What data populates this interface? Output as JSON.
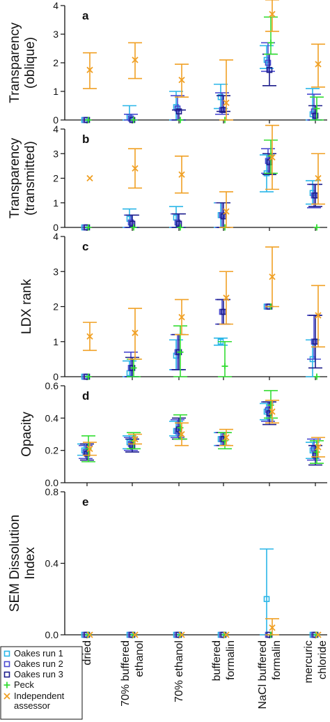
{
  "legend": [
    {
      "name": "Oakes run 1",
      "color": "#29b6e8",
      "marker": "square"
    },
    {
      "name": "Oakes run 2",
      "color": "#4a4ad0",
      "marker": "square"
    },
    {
      "name": "Oakes run 3",
      "color": "#1c1c8a",
      "marker": "square"
    },
    {
      "name": "Peck",
      "color": "#33dd33",
      "marker": "plus"
    },
    {
      "name": "Independent assessor",
      "color": "#f0a024",
      "marker": "x"
    }
  ],
  "chart_data": [
    {
      "panel": "a",
      "type": "scatter",
      "ylabel": [
        "Transparency",
        "(oblique)"
      ],
      "ylim": [
        0,
        4
      ],
      "yticks": [
        "0",
        "1",
        "2",
        "3",
        "4"
      ],
      "categories": [
        "dried",
        "70% buffered ethanol",
        "70% ethanol",
        "buffered formalin",
        "NaCl buffered formalin",
        "mercuric chloride"
      ],
      "series": [
        {
          "name": "Oakes run 1",
          "values": [
            0,
            0.1,
            0.45,
            0.8,
            2.1,
            0.2
          ],
          "lo": [
            0,
            0,
            0,
            0.4,
            1.8,
            0
          ],
          "hi": [
            0,
            0.5,
            1.0,
            1.25,
            2.6,
            1.1
          ]
        },
        {
          "name": "Oakes run 2",
          "values": [
            0,
            0.05,
            0.4,
            0.35,
            2.0,
            0.3
          ],
          "lo": [
            0,
            0,
            0,
            0.2,
            1.7,
            0
          ],
          "hi": [
            0,
            0.2,
            0.85,
            0.95,
            2.7,
            0.9
          ]
        },
        {
          "name": "Oakes run 3",
          "values": [
            0,
            0.0,
            0.3,
            0.35,
            1.75,
            0.15
          ],
          "lo": [
            0,
            0,
            0,
            0.3,
            1.2,
            0
          ],
          "hi": [
            0,
            0,
            0.35,
            0.85,
            2.3,
            0.5
          ]
        },
        {
          "name": "Peck",
          "values": [
            0,
            0.0,
            0.0,
            0.0,
            2.7,
            0.4
          ],
          "lo": [
            0,
            0,
            0,
            0,
            2.3,
            0
          ],
          "hi": [
            0,
            0,
            0,
            0,
            3.6,
            0.8
          ]
        },
        {
          "name": "Independent assessor",
          "values": [
            1.75,
            2.1,
            1.4,
            0.6,
            3.7,
            1.95
          ],
          "lo": [
            1.1,
            1.45,
            0.8,
            0.0,
            3.1,
            1.15
          ],
          "hi": [
            2.35,
            2.7,
            1.95,
            2.1,
            4.2,
            2.65
          ]
        }
      ]
    },
    {
      "panel": "b",
      "type": "scatter",
      "ylabel": [
        "Transparency",
        "(transmitted)"
      ],
      "ylim": [
        0,
        4
      ],
      "yticks": [
        "0",
        "1",
        "2",
        "3",
        "4"
      ],
      "categories": [
        "dried",
        "70% buffered ethanol",
        "70% ethanol",
        "buffered formalin",
        "NaCl buffered formalin",
        "mercuric chloride"
      ],
      "series": [
        {
          "name": "Oakes run 1",
          "values": [
            0,
            0.35,
            0.4,
            0.5,
            2.2,
            1.4
          ],
          "lo": [
            0,
            0,
            0,
            0,
            1.45,
            0.95
          ],
          "hi": [
            0,
            0.75,
            0.85,
            1.0,
            2.95,
            1.9
          ]
        },
        {
          "name": "Oakes run 2",
          "values": [
            0,
            0.2,
            0.2,
            0.5,
            2.7,
            1.3
          ],
          "lo": [
            0,
            0,
            0,
            0,
            2.2,
            0.8
          ],
          "hi": [
            0,
            0.5,
            0.55,
            1.0,
            3.2,
            1.75
          ]
        },
        {
          "name": "Oakes run 3",
          "values": [
            0,
            0.15,
            0.15,
            0.45,
            2.65,
            1.3
          ],
          "lo": [
            0,
            0,
            0,
            0,
            2.15,
            0.85
          ],
          "hi": [
            0,
            0.5,
            0.55,
            1.0,
            3.0,
            1.75
          ]
        },
        {
          "name": "Peck",
          "values": [
            0,
            0.0,
            0.0,
            0.0,
            2.9,
            0.0
          ],
          "lo": [
            0,
            0,
            0,
            0,
            2.2,
            0
          ],
          "hi": [
            0,
            0,
            0,
            0,
            3.55,
            0
          ]
        },
        {
          "name": "Independent assessor",
          "values": [
            2.0,
            2.4,
            2.15,
            0.65,
            2.85,
            2.0
          ],
          "lo": [
            2.0,
            1.6,
            1.4,
            0.0,
            1.55,
            0.95
          ],
          "hi": [
            2.0,
            3.2,
            2.9,
            1.45,
            4.15,
            3.0
          ]
        }
      ]
    },
    {
      "panel": "c",
      "type": "scatter",
      "ylabel": [
        "LDX rank"
      ],
      "ylim": [
        0,
        4
      ],
      "yticks": [
        "0",
        "1",
        "2",
        "3",
        "4"
      ],
      "categories": [
        "dried",
        "70% buffered ethanol",
        "70% ethanol",
        "buffered formalin",
        "NaCl buffered formalin",
        "mercuric chloride"
      ],
      "series": [
        {
          "name": "Oakes run 1",
          "values": [
            0,
            0.1,
            0.6,
            1.0,
            2.0,
            0.5
          ],
          "lo": [
            0,
            0,
            0.2,
            0.9,
            2.0,
            0
          ],
          "hi": [
            0,
            0.45,
            1.05,
            1.1,
            2.0,
            1.05
          ]
        },
        {
          "name": "Oakes run 2",
          "values": [
            0,
            0.25,
            0.7,
            1.85,
            2.0,
            1.0
          ],
          "lo": [
            0,
            0,
            0.2,
            1.5,
            2.0,
            0.5
          ],
          "hi": [
            0,
            0.7,
            1.2,
            2.2,
            2.0,
            1.75
          ]
        },
        {
          "name": "Oakes run 3",
          "values": [
            0,
            0.25,
            0.7,
            1.85,
            2.0,
            1.0
          ],
          "lo": [
            0,
            0,
            0.2,
            1.5,
            2.0,
            0.25
          ],
          "hi": [
            0,
            0.55,
            1.2,
            2.2,
            2.0,
            1.75
          ]
        },
        {
          "name": "Peck",
          "values": [
            0,
            0.25,
            0.7,
            0.3,
            2.0,
            0.0
          ],
          "lo": [
            0,
            0,
            0.0,
            0.0,
            2.0,
            0
          ],
          "hi": [
            0,
            0.5,
            1.45,
            1.0,
            2.0,
            0
          ]
        },
        {
          "name": "Independent assessor",
          "values": [
            1.15,
            1.25,
            1.7,
            2.25,
            2.85,
            1.75
          ],
          "lo": [
            0.75,
            0.5,
            1.2,
            1.5,
            2.0,
            0.85
          ],
          "hi": [
            1.55,
            1.95,
            2.2,
            3.0,
            3.7,
            2.6
          ]
        }
      ]
    },
    {
      "panel": "d",
      "type": "scatter",
      "ylabel": [
        "Opacity"
      ],
      "ylim": [
        0,
        0.6
      ],
      "yticks": [
        "0.0",
        "0.2",
        "0.4",
        "0.6"
      ],
      "categories": [
        "dried",
        "70% buffered ethanol",
        "70% ethanol",
        "buffered formalin",
        "NaCl buffered formalin",
        "mercuric chloride"
      ],
      "series": [
        {
          "name": "Oakes run 1",
          "values": [
            0.2,
            0.25,
            0.32,
            0.27,
            0.44,
            0.2
          ],
          "lo": [
            0.17,
            0.21,
            0.29,
            0.23,
            0.39,
            0.15
          ],
          "hi": [
            0.24,
            0.29,
            0.38,
            0.31,
            0.49,
            0.25
          ]
        },
        {
          "name": "Oakes run 2",
          "values": [
            0.19,
            0.24,
            0.32,
            0.27,
            0.45,
            0.21
          ],
          "lo": [
            0.15,
            0.2,
            0.28,
            0.23,
            0.38,
            0.14
          ],
          "hi": [
            0.23,
            0.28,
            0.39,
            0.31,
            0.5,
            0.27
          ]
        },
        {
          "name": "Oakes run 3",
          "values": [
            0.18,
            0.23,
            0.33,
            0.27,
            0.43,
            0.17
          ],
          "lo": [
            0.14,
            0.19,
            0.27,
            0.23,
            0.36,
            0.11
          ],
          "hi": [
            0.24,
            0.27,
            0.4,
            0.31,
            0.5,
            0.23
          ]
        },
        {
          "name": "Peck",
          "values": [
            0.21,
            0.26,
            0.34,
            0.26,
            0.48,
            0.19
          ],
          "lo": [
            0.13,
            0.21,
            0.27,
            0.21,
            0.4,
            0.12
          ],
          "hi": [
            0.29,
            0.31,
            0.42,
            0.31,
            0.57,
            0.26
          ]
        },
        {
          "name": "Independent assessor",
          "values": [
            0.21,
            0.27,
            0.3,
            0.28,
            0.44,
            0.22
          ],
          "lo": [
            0.17,
            0.24,
            0.23,
            0.23,
            0.37,
            0.16
          ],
          "hi": [
            0.25,
            0.3,
            0.37,
            0.33,
            0.51,
            0.28
          ]
        }
      ]
    },
    {
      "panel": "e",
      "type": "scatter",
      "ylabel": [
        "SEM Dissolution",
        "Index"
      ],
      "ylim": [
        0,
        0.8
      ],
      "yticks": [
        "0.0",
        "0.4",
        "0.8"
      ],
      "yticks_at": [
        0,
        0.4,
        0.8
      ],
      "categories": [
        "dried",
        "70% buffered ethanol",
        "70% ethanol",
        "buffered formalin",
        "NaCl buffered formalin",
        "mercuric chloride"
      ],
      "series": [
        {
          "name": "Oakes run 1",
          "values": [
            0,
            0,
            0,
            0,
            0.2,
            0
          ],
          "lo": [
            0,
            0,
            0,
            0,
            0.0,
            0
          ],
          "hi": [
            0,
            0,
            0,
            0,
            0.48,
            0
          ]
        },
        {
          "name": "Oakes run 2",
          "values": [
            0,
            0,
            0,
            0,
            0,
            0
          ],
          "lo": [
            0,
            0,
            0,
            0,
            0,
            0
          ],
          "hi": [
            0,
            0,
            0,
            0,
            0,
            0
          ]
        },
        {
          "name": "Oakes run 3",
          "values": [
            0,
            0,
            0,
            0,
            0,
            0
          ],
          "lo": [
            0,
            0,
            0,
            0,
            0,
            0
          ],
          "hi": [
            0,
            0,
            0,
            0,
            0,
            0
          ]
        },
        {
          "name": "Peck",
          "values": [
            0,
            0,
            0,
            0,
            0,
            0
          ],
          "lo": [
            0,
            0,
            0,
            0,
            0,
            0
          ],
          "hi": [
            0,
            0,
            0,
            0,
            0,
            0
          ]
        },
        {
          "name": "Independent assessor",
          "values": [
            0,
            0,
            0,
            0,
            0.04,
            0
          ],
          "lo": [
            0,
            0,
            0,
            0,
            0.0,
            0
          ],
          "hi": [
            0,
            0,
            0,
            0,
            0.09,
            0
          ]
        }
      ]
    }
  ],
  "x_category_labels": [
    [
      "dried"
    ],
    [
      "70% buffered",
      "ethanol"
    ],
    [
      "70% ethanol"
    ],
    [
      "buffered",
      "formalin"
    ],
    [
      "NaCl buffered",
      "formalin"
    ],
    [
      "mercuric",
      "chloride"
    ]
  ]
}
